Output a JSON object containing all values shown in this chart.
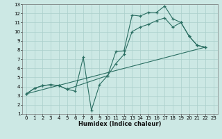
{
  "xlabel": "Humidex (Indice chaleur)",
  "xlim": [
    -0.5,
    23.5
  ],
  "ylim": [
    1,
    13
  ],
  "xticks": [
    0,
    1,
    2,
    3,
    4,
    5,
    6,
    7,
    8,
    9,
    10,
    11,
    12,
    13,
    14,
    15,
    16,
    17,
    18,
    19,
    20,
    21,
    22,
    23
  ],
  "yticks": [
    1,
    2,
    3,
    4,
    5,
    6,
    7,
    8,
    9,
    10,
    11,
    12,
    13
  ],
  "bg_color": "#cce8e4",
  "grid_color": "#aacfcb",
  "line_color": "#2a6e62",
  "line1_x": [
    0,
    1,
    2,
    3,
    4,
    5,
    6,
    7,
    8,
    9,
    10,
    11,
    12,
    13,
    14,
    15,
    16,
    17,
    18,
    19,
    20,
    21,
    22
  ],
  "line1_y": [
    3.2,
    3.8,
    4.1,
    4.2,
    4.1,
    3.7,
    3.5,
    7.2,
    1.4,
    4.2,
    5.2,
    7.8,
    7.9,
    11.8,
    11.7,
    12.1,
    12.1,
    12.8,
    11.4,
    11.0,
    9.5,
    8.5,
    8.3
  ],
  "line2_x": [
    0,
    1,
    2,
    3,
    4,
    5,
    10,
    11,
    12,
    13,
    14,
    15,
    16,
    17,
    18,
    19,
    20,
    21,
    22
  ],
  "line2_y": [
    3.2,
    3.8,
    4.1,
    4.2,
    4.1,
    3.7,
    5.2,
    6.5,
    7.5,
    10.0,
    10.5,
    10.8,
    11.2,
    11.5,
    10.5,
    11.0,
    9.5,
    8.5,
    8.3
  ],
  "line3_x": [
    0,
    22
  ],
  "line3_y": [
    3.2,
    8.3
  ],
  "tick_fontsize": 5.0,
  "xlabel_fontsize": 6.0
}
